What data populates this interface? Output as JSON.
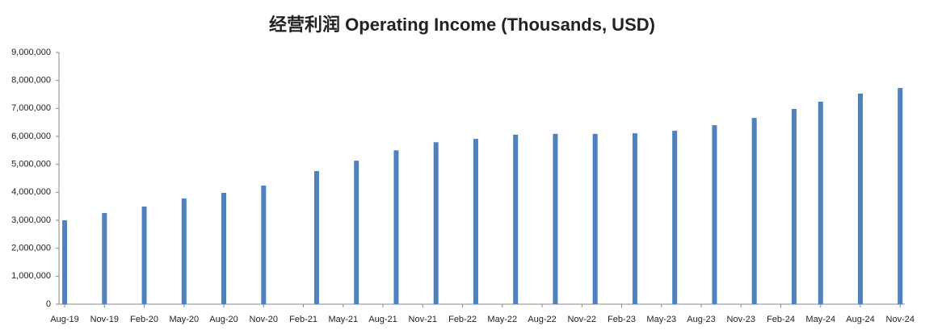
{
  "chart_data": {
    "type": "bar",
    "title": "经营利润 Operating Income (Thousands, USD)",
    "x": [
      "2019-08",
      "2019-11",
      "2020-02",
      "2020-05",
      "2020-08",
      "2020-11",
      "2021-03",
      "2021-06",
      "2021-09",
      "2021-12",
      "2022-03",
      "2022-06",
      "2022-09",
      "2022-12",
      "2023-03",
      "2023-06",
      "2023-09",
      "2023-12",
      "2024-03",
      "2024-05",
      "2024-08",
      "2024-11"
    ],
    "series": [
      {
        "name": "Operating Income",
        "color": "#4f81bd",
        "values": [
          3000000,
          3260000,
          3490000,
          3780000,
          3980000,
          4240000,
          4760000,
          5130000,
          5500000,
          5790000,
          5910000,
          6060000,
          6090000,
          6090000,
          6110000,
          6200000,
          6400000,
          6660000,
          6980000,
          7240000,
          7530000,
          7730000
        ]
      }
    ],
    "xlim": [
      "2019-08",
      "2024-11"
    ],
    "xticks": [
      {
        "value": "2019-08",
        "label": "Aug-19"
      },
      {
        "value": "2019-11",
        "label": "Nov-19"
      },
      {
        "value": "2020-02",
        "label": "Feb-20"
      },
      {
        "value": "2020-05",
        "label": "May-20"
      },
      {
        "value": "2020-08",
        "label": "Aug-20"
      },
      {
        "value": "2020-11",
        "label": "Nov-20"
      },
      {
        "value": "2021-02",
        "label": "Feb-21"
      },
      {
        "value": "2021-05",
        "label": "May-21"
      },
      {
        "value": "2021-08",
        "label": "Aug-21"
      },
      {
        "value": "2021-11",
        "label": "Nov-21"
      },
      {
        "value": "2022-02",
        "label": "Feb-22"
      },
      {
        "value": "2022-05",
        "label": "May-22"
      },
      {
        "value": "2022-08",
        "label": "Aug-22"
      },
      {
        "value": "2022-11",
        "label": "Nov-22"
      },
      {
        "value": "2023-02",
        "label": "Feb-23"
      },
      {
        "value": "2023-05",
        "label": "May-23"
      },
      {
        "value": "2023-08",
        "label": "Aug-23"
      },
      {
        "value": "2023-11",
        "label": "Nov-23"
      },
      {
        "value": "2024-02",
        "label": "Feb-24"
      },
      {
        "value": "2024-05",
        "label": "May-24"
      },
      {
        "value": "2024-08",
        "label": "Aug-24"
      },
      {
        "value": "2024-11",
        "label": "Nov-24"
      }
    ],
    "ylim": [
      0,
      9000000
    ],
    "yticks": [
      0,
      {
        "value": 1000000,
        "label": "1,000,000"
      },
      {
        "value": 2000000,
        "label": "2,000,000"
      },
      {
        "value": 3000000,
        "label": "3,000,000"
      },
      {
        "value": 4000000,
        "label": "4,000,000"
      },
      {
        "value": 5000000,
        "label": "5,000,000"
      },
      {
        "value": 6000000,
        "label": "6,000,000"
      },
      {
        "value": 7000000,
        "label": "7,000,000"
      },
      {
        "value": 8000000,
        "label": "8,000,000"
      },
      {
        "value": 9000000,
        "label": "9,000,000"
      }
    ],
    "grid": false
  }
}
